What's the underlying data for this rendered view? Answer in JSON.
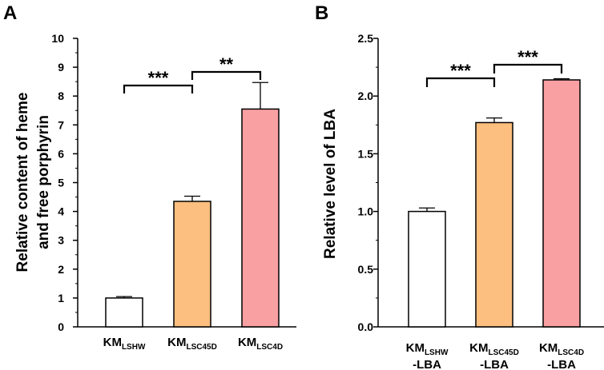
{
  "chart_data": [
    {
      "panel": "A",
      "type": "bar",
      "ylabel_line1": "Relative content of heme",
      "ylabel_line2": "and free porphyrin",
      "ylim": [
        0,
        10
      ],
      "yticks": [
        "0",
        "1",
        "2",
        "3",
        "4",
        "5",
        "6",
        "7",
        "8",
        "9",
        "10"
      ],
      "categories": [
        {
          "main": "KM",
          "sub": "LSHW",
          "line2": ""
        },
        {
          "main": "KM",
          "sub": "LSC45D",
          "line2": ""
        },
        {
          "main": "KM",
          "sub": "LSC4D",
          "line2": ""
        }
      ],
      "values": [
        1.0,
        4.35,
        7.55
      ],
      "errors": [
        0.05,
        0.18,
        0.92
      ],
      "colors": [
        "#ffffff",
        "#fdbf7f",
        "#f9a0a3"
      ],
      "significance": [
        {
          "from": 0,
          "to": 1,
          "label": "***"
        },
        {
          "from": 1,
          "to": 2,
          "label": "**"
        }
      ]
    },
    {
      "panel": "B",
      "type": "bar",
      "ylabel_line1": "Relative level of LBA",
      "ylabel_line2": "",
      "ylim": [
        0,
        2.5
      ],
      "yticks": [
        "0.0",
        "0.5",
        "1.0",
        "1.5",
        "2.0",
        "2.5"
      ],
      "categories": [
        {
          "main": "KM",
          "sub": "LSHW",
          "line2": "-LBA"
        },
        {
          "main": "KM",
          "sub": "LSC45D",
          "line2": "-LBA"
        },
        {
          "main": "KM",
          "sub": "LSC4D",
          "line2": "-LBA"
        }
      ],
      "values": [
        1.0,
        1.77,
        2.14
      ],
      "errors": [
        0.03,
        0.04,
        0.01
      ],
      "colors": [
        "#ffffff",
        "#fdbf7f",
        "#f9a0a3"
      ],
      "significance": [
        {
          "from": 0,
          "to": 1,
          "label": "***"
        },
        {
          "from": 1,
          "to": 2,
          "label": "***"
        }
      ]
    }
  ]
}
